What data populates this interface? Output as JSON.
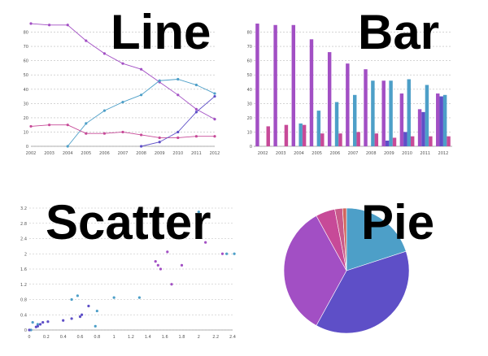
{
  "labels": {
    "line": "Line",
    "bar": "Bar",
    "scatter": "Scatter",
    "pie": "Pie"
  },
  "chart_data": [
    {
      "type": "line",
      "categories": [
        "2002",
        "2003",
        "2004",
        "2005",
        "2006",
        "2007",
        "2008",
        "2009",
        "2010",
        "2011",
        "2012"
      ],
      "ylim": [
        0,
        90
      ],
      "yticks": [
        0,
        10,
        20,
        30,
        40,
        50,
        60,
        70,
        80
      ],
      "grid": true,
      "series": [
        {
          "color": "#a24fc4",
          "values": [
            86,
            85,
            85,
            74,
            65,
            58,
            54,
            45,
            36,
            26,
            19
          ]
        },
        {
          "color": "#4d9fc8",
          "values": [
            null,
            null,
            0,
            16,
            25,
            31,
            36,
            46,
            47,
            43,
            37
          ]
        },
        {
          "color": "#c74a98",
          "values": [
            14,
            15,
            15,
            9,
            9,
            10,
            8,
            6,
            6,
            7,
            7
          ]
        },
        {
          "color": "#5e4fc7",
          "values": [
            null,
            null,
            null,
            null,
            null,
            null,
            0,
            3,
            10,
            24,
            35
          ]
        }
      ]
    },
    {
      "type": "bar",
      "categories": [
        "2002",
        "2003",
        "2004",
        "2005",
        "2006",
        "2007",
        "2008",
        "2009",
        "2010",
        "2011",
        "2012"
      ],
      "ylim": [
        0,
        90
      ],
      "yticks": [
        0,
        10,
        20,
        30,
        40,
        50,
        60,
        70,
        80
      ],
      "grid": true,
      "series": [
        {
          "color": "#a24fc4",
          "values": [
            86,
            85,
            85,
            75,
            66,
            58,
            54,
            46,
            37,
            26,
            37
          ]
        },
        {
          "color": "#5e4fc7",
          "values": [
            0,
            0,
            0,
            0,
            0,
            0,
            0,
            4,
            10,
            24,
            35
          ]
        },
        {
          "color": "#4d9fc8",
          "values": [
            0,
            0,
            16,
            25,
            31,
            36,
            46,
            46,
            47,
            43,
            36
          ]
        },
        {
          "color": "#c74a98",
          "values": [
            14,
            15,
            15,
            9,
            9,
            10,
            9,
            6,
            7,
            7,
            7
          ]
        }
      ]
    },
    {
      "type": "scatter",
      "xlim": [
        0,
        2.4
      ],
      "ylim": [
        0,
        3.2
      ],
      "xticks": [
        "0",
        "0.2",
        "0.4",
        "0.6",
        "0.8",
        "1",
        "1.2",
        "1.4",
        "1.6",
        "1.8",
        "2",
        "2.2",
        "2.4"
      ],
      "yticks": [
        "0",
        "0.4",
        "0.8",
        "1.2",
        "1.6",
        "2",
        "2.4",
        "2.8",
        "3.2"
      ],
      "grid": true,
      "series": [
        {
          "color": "#4d9fc8",
          "points": [
            [
              0.02,
              0
            ],
            [
              0.04,
              0.2
            ],
            [
              0.1,
              0.15
            ],
            [
              0.5,
              0.8
            ],
            [
              0.57,
              0.9
            ],
            [
              0.78,
              0.1
            ],
            [
              0.8,
              0.5
            ],
            [
              1.0,
              0.85
            ],
            [
              1.3,
              0.85
            ],
            [
              2.0,
              3.1
            ],
            [
              2.33,
              2.0
            ],
            [
              2.42,
              2.0
            ]
          ]
        },
        {
          "color": "#5e4fc7",
          "points": [
            [
              0.0,
              0.0
            ],
            [
              0.08,
              0.08
            ],
            [
              0.1,
              0.1
            ],
            [
              0.13,
              0.15
            ],
            [
              0.16,
              0.2
            ],
            [
              0.22,
              0.22
            ],
            [
              0.4,
              0.25
            ],
            [
              0.5,
              0.3
            ],
            [
              0.6,
              0.35
            ],
            [
              0.62,
              0.4
            ],
            [
              0.7,
              0.63
            ]
          ]
        },
        {
          "color": "#a24fc4",
          "points": [
            [
              1.49,
              1.8
            ],
            [
              1.52,
              1.7
            ],
            [
              1.55,
              1.6
            ],
            [
              1.63,
              2.05
            ],
            [
              1.68,
              1.2
            ],
            [
              1.8,
              1.7
            ],
            [
              2.08,
              2.3
            ],
            [
              2.28,
              2.0
            ]
          ]
        }
      ]
    },
    {
      "type": "pie",
      "slices": [
        {
          "color": "#4d9fc8",
          "value": 20
        },
        {
          "color": "#5e4fc7",
          "value": 38
        },
        {
          "color": "#a24fc4",
          "value": 34
        },
        {
          "color": "#c74a98",
          "value": 5
        },
        {
          "color": "#c95a8a",
          "value": 2
        },
        {
          "color": "#d0665c",
          "value": 1
        }
      ]
    }
  ]
}
